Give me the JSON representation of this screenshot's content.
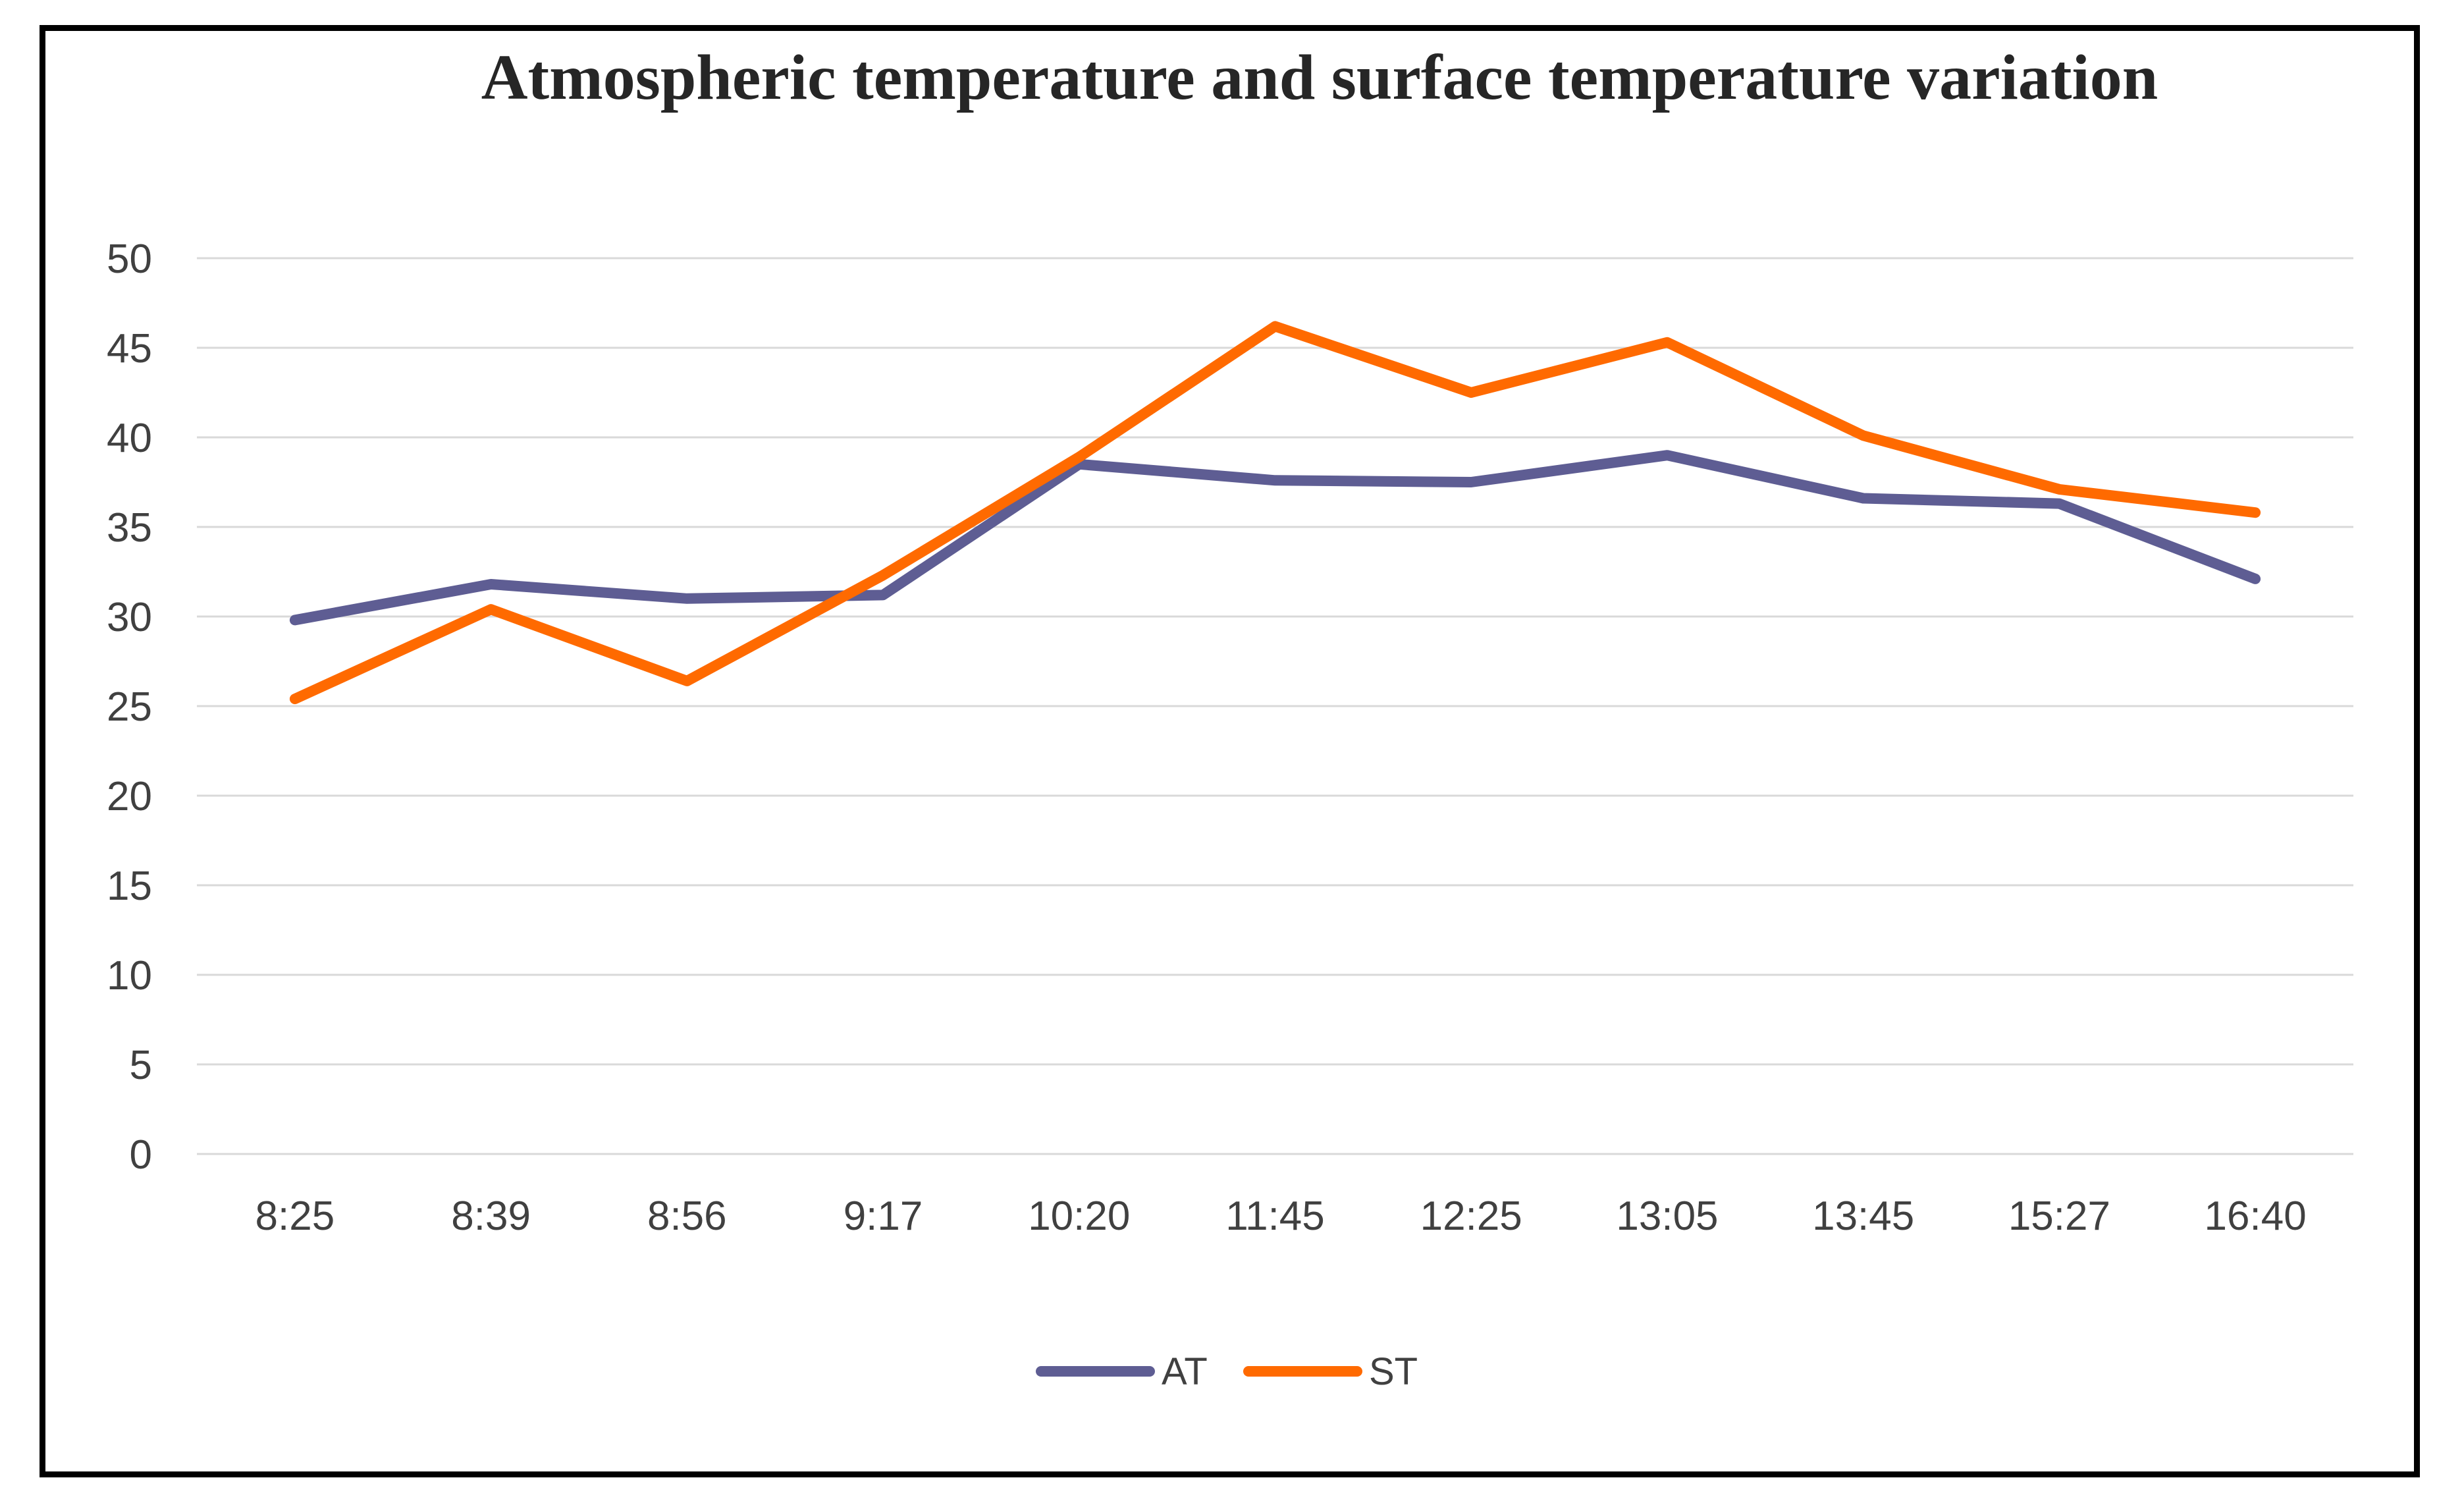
{
  "chart_data": {
    "type": "line",
    "title": "Atmospheric temperature and surface temperature variation",
    "xlabel": "",
    "ylabel": "",
    "ylim": [
      0,
      50
    ],
    "ytick_step": 5,
    "grid": true,
    "legend_position": "bottom",
    "categories": [
      "8:25",
      "8:39",
      "8:56",
      "9:17",
      "10:20",
      "11:45",
      "12:25",
      "13:05",
      "13:45",
      "15:27",
      "16:40"
    ],
    "series": [
      {
        "name": "AT",
        "color": "#5e5d93",
        "values": [
          29.8,
          31.8,
          31.0,
          31.2,
          38.5,
          37.6,
          37.5,
          39.0,
          36.6,
          36.3,
          32.1
        ]
      },
      {
        "name": "ST",
        "color": "#ff6a00",
        "values": [
          25.4,
          30.4,
          26.4,
          32.3,
          38.9,
          46.2,
          42.5,
          45.3,
          40.1,
          37.1,
          35.8
        ]
      }
    ]
  }
}
